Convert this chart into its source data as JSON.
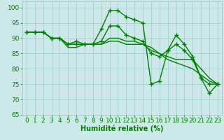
{
  "lines": [
    {
      "x": [
        0,
        1,
        2,
        3,
        4,
        5,
        6,
        7,
        8,
        9,
        10,
        11,
        12,
        13,
        14,
        15,
        16,
        17,
        18,
        19,
        20,
        21,
        22,
        23
      ],
      "y": [
        92,
        92,
        92,
        90,
        90,
        88,
        89,
        88,
        88,
        93,
        99,
        99,
        97,
        96,
        95,
        75,
        76,
        86,
        91,
        88,
        84,
        77,
        72,
        75
      ],
      "color": "#008000",
      "linewidth": 1.0,
      "marker": "+",
      "markersize": 4
    },
    {
      "x": [
        0,
        1,
        2,
        3,
        4,
        5,
        6,
        7,
        8,
        9,
        10,
        11,
        12,
        13,
        14,
        15,
        16,
        17,
        18,
        19,
        20,
        21,
        22,
        23
      ],
      "y": [
        92,
        92,
        92,
        90,
        90,
        88,
        88,
        88,
        88,
        89,
        94,
        94,
        91,
        90,
        89,
        85,
        84,
        86,
        88,
        86,
        83,
        77,
        75,
        75
      ],
      "color": "#008000",
      "linewidth": 1.0,
      "marker": "+",
      "markersize": 4
    },
    {
      "x": [
        0,
        1,
        2,
        3,
        4,
        5,
        6,
        7,
        8,
        9,
        10,
        11,
        12,
        13,
        14,
        15,
        16,
        17,
        18,
        19,
        20,
        21,
        22,
        23
      ],
      "y": [
        92,
        92,
        92,
        90,
        90,
        88,
        88,
        88,
        88,
        88,
        90,
        90,
        89,
        89,
        88,
        87,
        85,
        84,
        83,
        83,
        83,
        80,
        77,
        75
      ],
      "color": "#008000",
      "linewidth": 1.0,
      "marker": null,
      "markersize": 3
    },
    {
      "x": [
        0,
        1,
        2,
        3,
        4,
        5,
        6,
        7,
        8,
        9,
        10,
        11,
        12,
        13,
        14,
        15,
        16,
        17,
        18,
        19,
        20,
        21,
        22,
        23
      ],
      "y": [
        92,
        92,
        92,
        90,
        90,
        87,
        87,
        88,
        88,
        88,
        89,
        89,
        88,
        88,
        88,
        86,
        85,
        83,
        82,
        81,
        80,
        78,
        76,
        75
      ],
      "color": "#008000",
      "linewidth": 1.0,
      "marker": null,
      "markersize": 3
    }
  ],
  "title": "",
  "xlabel": "Humidité relative (%)",
  "ylabel": "",
  "xlim": [
    -0.5,
    23.5
  ],
  "ylim": [
    65,
    102
  ],
  "yticks": [
    65,
    70,
    75,
    80,
    85,
    90,
    95,
    100
  ],
  "xticks": [
    0,
    1,
    2,
    3,
    4,
    5,
    6,
    7,
    8,
    9,
    10,
    11,
    12,
    13,
    14,
    15,
    16,
    17,
    18,
    19,
    20,
    21,
    22,
    23
  ],
  "bg_color": "#cce8e8",
  "grid_color": "#99cccc",
  "xlabel_fontsize": 7,
  "tick_fontsize": 6.5
}
